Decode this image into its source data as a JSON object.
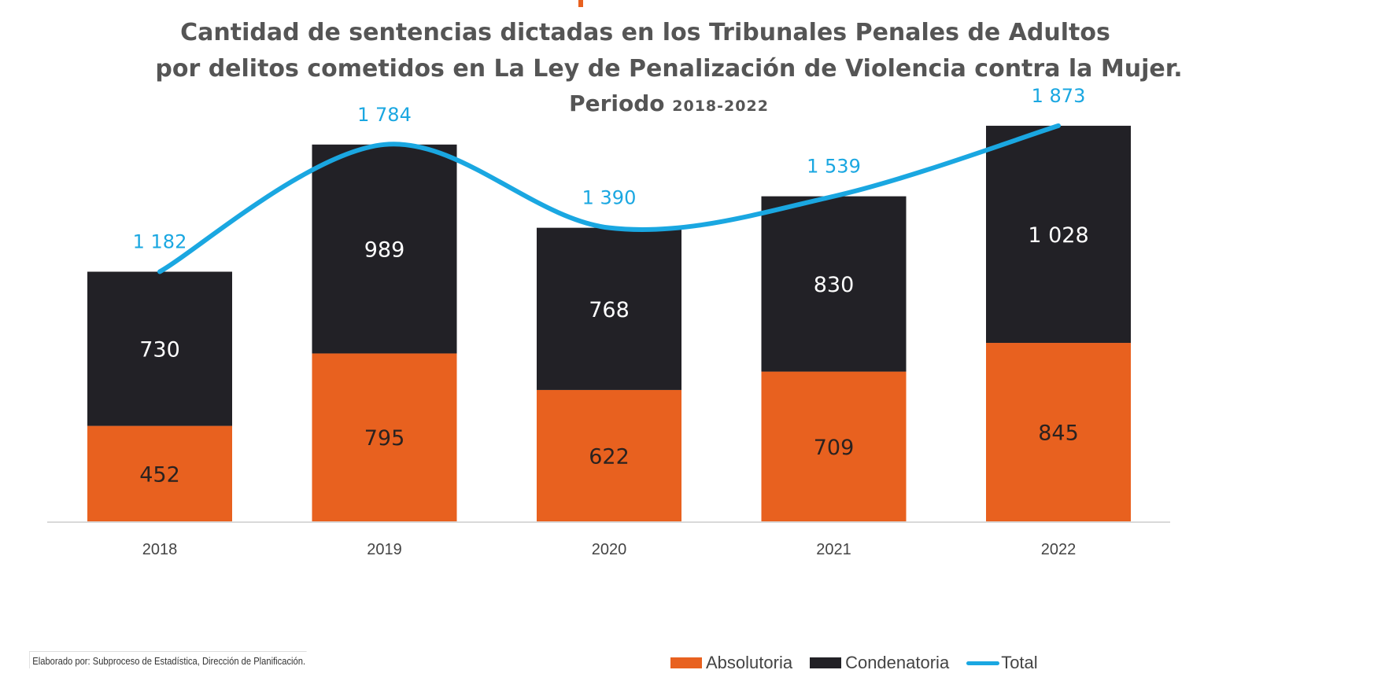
{
  "header": {
    "title_line1": "Cantidad de sentencias dictadas en los Tribunales Penales de Adultos",
    "title_line2": "por delitos cometidos en La Ley de Penalización de Violencia contra la Mujer.",
    "title_line3_word": "Periodo",
    "title_line3_period": "2018-2022"
  },
  "footer": {
    "credit": "Elaborado por: Subproceso de Estadística, Dirección de Planificación."
  },
  "colors": {
    "absolutoria": "#e8611f",
    "condenatoria": "#222126",
    "total": "#1aa7e1",
    "title": "#555555",
    "axis": "#d9d9d9"
  },
  "chart_data": {
    "type": "bar",
    "stacked": true,
    "title": "Cantidad de sentencias dictadas en los Tribunales Penales de Adultos por delitos cometidos en La Ley de Penalización de Violencia contra la Mujer. Periodo 2018-2022",
    "xlabel": "",
    "ylabel": "",
    "categories": [
      "2018",
      "2019",
      "2020",
      "2021",
      "2022"
    ],
    "series": [
      {
        "name": "Absolutoria",
        "type": "bar",
        "values": [
          452,
          795,
          622,
          709,
          845
        ],
        "labels": [
          "452",
          "795",
          "622",
          "709",
          "845"
        ]
      },
      {
        "name": "Condenatoria",
        "type": "bar",
        "values": [
          730,
          989,
          768,
          830,
          1028
        ],
        "labels": [
          "730",
          "989",
          "768",
          "830",
          "1 028"
        ]
      },
      {
        "name": "Total",
        "type": "line",
        "smooth": true,
        "values": [
          1182,
          1784,
          1390,
          1539,
          1873
        ],
        "labels": [
          "1 182",
          "1 784",
          "1 390",
          "1 539",
          "1 873"
        ]
      }
    ],
    "ylim": [
      0,
      1873
    ],
    "y_axis_visible": false,
    "grid": false,
    "legend": {
      "position": "bottom-right",
      "entries": [
        "Absolutoria",
        "Condenatoria",
        "Total"
      ]
    }
  }
}
